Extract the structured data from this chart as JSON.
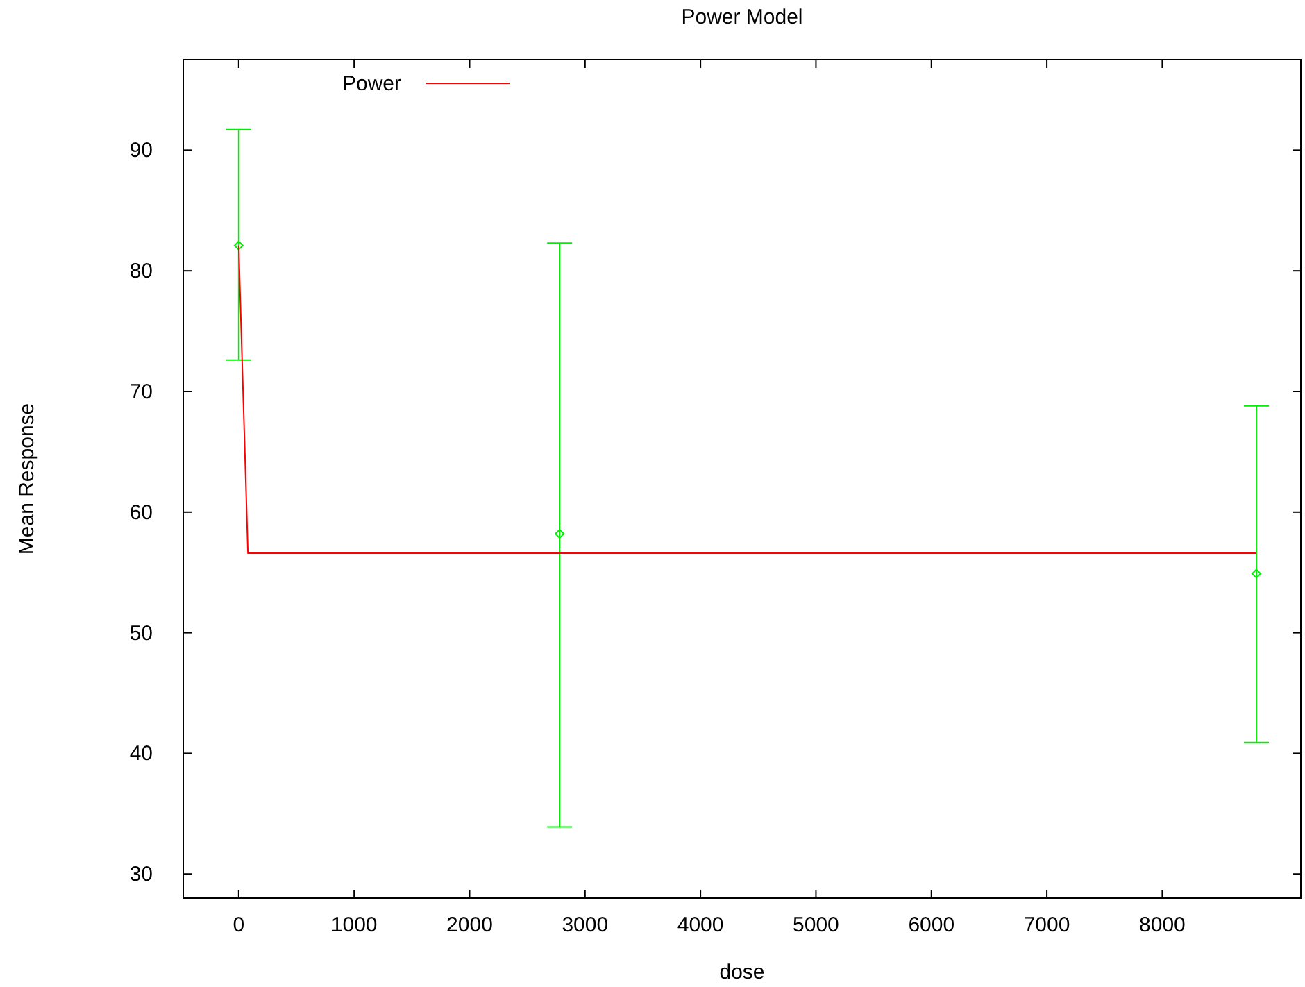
{
  "chart_data": {
    "type": "scatter",
    "title": "Power Model",
    "xlabel": "dose",
    "ylabel": "Mean Response",
    "xlim": [
      -480,
      9200
    ],
    "ylim": [
      28,
      97.5
    ],
    "xticks": [
      0,
      1000,
      2000,
      3000,
      4000,
      5000,
      6000,
      7000,
      8000
    ],
    "yticks": [
      30,
      40,
      50,
      60,
      70,
      80,
      90
    ],
    "grid": false,
    "legend": "top left",
    "series": [
      {
        "color": "#00ee00",
        "marker": "diamond",
        "x": [
          0,
          2780,
          8815
        ],
        "values": [
          82.1,
          58.2,
          54.9
        ],
        "errors": [
          [
            72.6,
            91.7
          ],
          [
            33.9,
            82.3
          ],
          [
            40.9,
            68.8
          ]
        ]
      },
      {
        "type": "line",
        "name": "Power",
        "color": "#ff0000",
        "line_style": "solid",
        "marker": "none",
        "x": [
          0,
          80,
          8815
        ],
        "values": [
          82.1,
          56.6,
          56.6
        ]
      }
    ]
  }
}
